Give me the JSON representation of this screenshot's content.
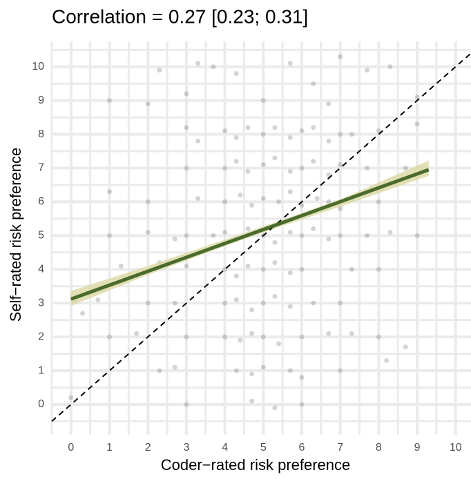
{
  "chart_data": {
    "type": "scatter",
    "title": "Correlation = 0.27 [0.23; 0.31]",
    "x_label": "Coder−rated risk preference",
    "y_label": "Self−rated risk preference",
    "xlim": [
      -0.5,
      10.4
    ],
    "ylim": [
      -0.9,
      10.75
    ],
    "xticks": [
      0,
      1,
      2,
      3,
      4,
      5,
      6,
      7,
      8,
      9,
      10
    ],
    "yticks": [
      0,
      1,
      2,
      3,
      4,
      5,
      6,
      7,
      8,
      9,
      10
    ],
    "x_minor_grid": [
      -0.5,
      0.5,
      1.5,
      2.5,
      3.5,
      4.5,
      5.5,
      6.5,
      7.5,
      8.5,
      9.5
    ],
    "y_minor_grid": [
      -0.5,
      0.5,
      1.5,
      2.5,
      3.5,
      4.5,
      5.5,
      6.5,
      7.5,
      8.5,
      9.5,
      10.5
    ],
    "grid": true,
    "points": {
      "color": "#555555",
      "opacity": 0.25,
      "x": [
        4.0,
        4.3,
        4.6,
        5.0,
        5.3,
        5.7,
        6.0,
        6.3,
        6.7,
        7.0,
        4.0,
        4.3,
        4.6,
        5.0,
        5.3,
        5.7,
        6.0,
        6.3,
        6.7,
        7.0,
        4.0,
        4.4,
        4.7,
        5.0,
        5.4,
        5.7,
        6.0,
        6.4,
        6.7,
        7.0,
        3.7,
        4.0,
        4.3,
        4.6,
        5.0,
        5.3,
        5.7,
        6.0,
        6.3,
        6.7,
        7.0,
        4.0,
        4.3,
        4.6,
        5.0,
        5.3,
        5.7,
        6.0,
        4.0,
        4.3,
        4.7,
        5.0,
        5.3,
        5.7,
        6.3,
        4.0,
        4.4,
        4.7,
        5.0,
        5.4,
        6.0,
        6.7,
        4.3,
        4.7,
        5.0,
        5.7,
        6.0,
        4.7,
        5.3,
        6.0,
        3.0,
        3.3,
        3.0,
        3.3,
        3.0,
        2.7,
        3.0,
        2.7,
        3.0,
        2.7,
        3.0,
        2.0,
        2.3,
        2.0,
        1.7,
        2.3,
        2.0,
        1.0,
        1.3,
        0.7,
        1.0,
        0.3,
        1.0,
        0.0,
        7.3,
        7.7,
        7.3,
        7.7,
        7.3,
        7.0,
        7.3,
        7.0,
        8.0,
        8.0,
        8.3,
        8.0,
        8.0,
        8.7,
        9.0,
        9.0,
        8.7,
        8.2,
        2.3,
        3.0,
        3.7,
        4.3,
        5.0,
        5.7,
        6.3,
        7.0,
        7.7,
        8.3,
        9.0,
        1.0,
        2.0,
        6.7,
        3.3
      ],
      "y": [
        8.1,
        7.9,
        8.2,
        8.0,
        8.2,
        7.9,
        8.1,
        8.2,
        7.8,
        8.0,
        7.0,
        7.2,
        6.9,
        7.1,
        7.3,
        6.9,
        7.0,
        7.2,
        6.8,
        7.1,
        6.0,
        6.2,
        5.9,
        6.1,
        6.0,
        6.3,
        5.9,
        6.1,
        6.0,
        5.8,
        5.0,
        5.1,
        4.9,
        5.2,
        5.0,
        4.8,
        5.1,
        5.0,
        5.2,
        4.9,
        5.0,
        4.0,
        3.8,
        4.1,
        4.0,
        4.2,
        3.9,
        4.0,
        3.0,
        3.1,
        2.8,
        3.0,
        3.2,
        2.9,
        3.0,
        2.0,
        1.9,
        2.1,
        2.0,
        1.8,
        2.0,
        2.1,
        1.0,
        0.9,
        1.1,
        1.0,
        0.8,
        0.1,
        -0.1,
        0.0,
        8.2,
        7.8,
        7.0,
        6.1,
        5.0,
        4.9,
        4.1,
        3.0,
        2.0,
        1.1,
        0.0,
        5.1,
        4.2,
        3.0,
        2.1,
        1.0,
        6.0,
        5.0,
        4.1,
        3.1,
        2.0,
        2.7,
        6.3,
        0.2,
        8.0,
        7.0,
        6.1,
        5.0,
        4.0,
        3.0,
        2.1,
        1.0,
        8.1,
        6.0,
        5.1,
        4.0,
        2.0,
        7.0,
        8.3,
        5.0,
        1.7,
        1.3,
        9.9,
        9.2,
        10.0,
        9.8,
        9.0,
        10.1,
        9.5,
        10.3,
        9.9,
        10.0,
        9.1,
        9.0,
        8.9,
        8.9,
        10.1
      ]
    },
    "band": {
      "color": "#ddd9a8",
      "x": [
        0,
        2,
        4,
        5.3,
        7,
        9.3
      ],
      "lower": [
        2.92,
        3.84,
        4.69,
        5.21,
        5.86,
        6.77
      ],
      "upper": [
        3.36,
        4.1,
        4.88,
        5.39,
        6.07,
        7.22
      ]
    },
    "fit": {
      "color": "#4a6b2c",
      "x": [
        0,
        9.3
      ],
      "y": [
        3.12,
        6.95
      ]
    },
    "identity": {
      "color": "#000000",
      "x": [
        -0.5,
        10.4
      ],
      "y": [
        -0.5,
        10.4
      ]
    }
  }
}
